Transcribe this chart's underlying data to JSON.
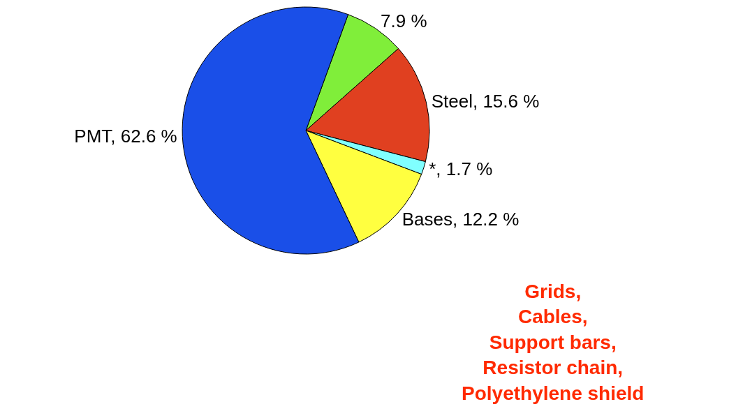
{
  "chart_data": {
    "type": "pie",
    "categories": [
      null,
      "Steel",
      "*",
      "Bases",
      "PMT"
    ],
    "values": [
      7.9,
      15.6,
      1.7,
      12.2,
      62.6
    ],
    "value_labels": [
      "7.9 %",
      "15.6 %",
      "1.7 %",
      "12.2 %",
      "62.6 %"
    ],
    "colors": [
      "#80ee3a",
      "#e04020",
      "#80ffff",
      "#ffff40",
      "#1a4fe8"
    ],
    "annotations": [
      "Grids,\nCables,\nSupport bars,\nResistor chain,\nPolyethylene shield"
    ],
    "legend": false
  }
}
